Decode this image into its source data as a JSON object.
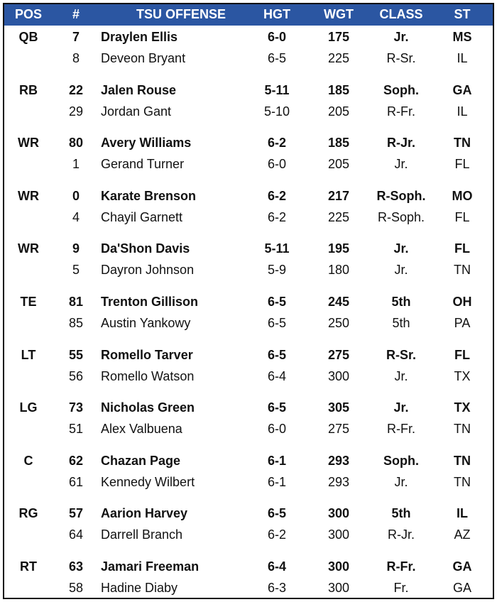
{
  "header": {
    "pos": "POS",
    "num": "#",
    "name": "TSU OFFENSE",
    "hgt": "HGT",
    "wgt": "WGT",
    "class": "CLASS",
    "st": "ST"
  },
  "colors": {
    "header_bg": "#2b56a2",
    "header_text": "#ffffff",
    "border": "#111111"
  },
  "groups": [
    {
      "pos": "QB",
      "players": [
        {
          "num": "7",
          "name": "Draylen Ellis",
          "hgt": "6-0",
          "wgt": "175",
          "class": "Jr.",
          "st": "MS"
        },
        {
          "num": "8",
          "name": "Deveon Bryant",
          "hgt": "6-5",
          "wgt": "225",
          "class": "R-Sr.",
          "st": "IL"
        }
      ]
    },
    {
      "pos": "RB",
      "players": [
        {
          "num": "22",
          "name": "Jalen Rouse",
          "hgt": "5-11",
          "wgt": "185",
          "class": "Soph.",
          "st": "GA"
        },
        {
          "num": "29",
          "name": "Jordan Gant",
          "hgt": "5-10",
          "wgt": "205",
          "class": "R-Fr.",
          "st": "IL"
        }
      ]
    },
    {
      "pos": "WR",
      "players": [
        {
          "num": "80",
          "name": "Avery Williams",
          "hgt": "6-2",
          "wgt": "185",
          "class": "R-Jr.",
          "st": "TN"
        },
        {
          "num": "1",
          "name": "Gerand Turner",
          "hgt": "6-0",
          "wgt": "205",
          "class": "Jr.",
          "st": "FL"
        }
      ]
    },
    {
      "pos": "WR",
      "players": [
        {
          "num": "0",
          "name": "Karate Brenson",
          "hgt": "6-2",
          "wgt": "217",
          "class": "R-Soph.",
          "st": "MO"
        },
        {
          "num": "4",
          "name": "Chayil Garnett",
          "hgt": "6-2",
          "wgt": "225",
          "class": "R-Soph.",
          "st": "FL"
        }
      ]
    },
    {
      "pos": "WR",
      "players": [
        {
          "num": "9",
          "name": "Da'Shon Davis",
          "hgt": "5-11",
          "wgt": "195",
          "class": "Jr.",
          "st": "FL"
        },
        {
          "num": "5",
          "name": "Dayron Johnson",
          "hgt": "5-9",
          "wgt": "180",
          "class": "Jr.",
          "st": "TN"
        }
      ]
    },
    {
      "pos": "TE",
      "players": [
        {
          "num": "81",
          "name": "Trenton Gillison",
          "hgt": "6-5",
          "wgt": "245",
          "class": "5th",
          "st": "OH"
        },
        {
          "num": "85",
          "name": "Austin Yankowy",
          "hgt": "6-5",
          "wgt": "250",
          "class": "5th",
          "st": "PA"
        }
      ]
    },
    {
      "pos": "LT",
      "players": [
        {
          "num": "55",
          "name": "Romello Tarver",
          "hgt": "6-5",
          "wgt": "275",
          "class": "R-Sr.",
          "st": "FL"
        },
        {
          "num": "56",
          "name": "Romello Watson",
          "hgt": "6-4",
          "wgt": "300",
          "class": "Jr.",
          "st": "TX"
        }
      ]
    },
    {
      "pos": "LG",
      "players": [
        {
          "num": "73",
          "name": "Nicholas Green",
          "hgt": "6-5",
          "wgt": "305",
          "class": "Jr.",
          "st": "TX"
        },
        {
          "num": "51",
          "name": "Alex Valbuena",
          "hgt": "6-0",
          "wgt": "275",
          "class": "R-Fr.",
          "st": "TN"
        }
      ]
    },
    {
      "pos": "C",
      "players": [
        {
          "num": "62",
          "name": "Chazan Page",
          "hgt": "6-1",
          "wgt": "293",
          "class": "Soph.",
          "st": "TN"
        },
        {
          "num": "61",
          "name": "Kennedy Wilbert",
          "hgt": "6-1",
          "wgt": "293",
          "class": "Jr.",
          "st": "TN"
        }
      ]
    },
    {
      "pos": "RG",
      "players": [
        {
          "num": "57",
          "name": "Aarion Harvey",
          "hgt": "6-5",
          "wgt": "300",
          "class": "5th",
          "st": "IL"
        },
        {
          "num": "64",
          "name": "Darrell Branch",
          "hgt": "6-2",
          "wgt": "300",
          "class": "R-Jr.",
          "st": "AZ"
        }
      ]
    },
    {
      "pos": "RT",
      "players": [
        {
          "num": "63",
          "name": "Jamari Freeman",
          "hgt": "6-4",
          "wgt": "300",
          "class": "R-Fr.",
          "st": "GA"
        },
        {
          "num": "58",
          "name": "Hadine Diaby",
          "hgt": "6-3",
          "wgt": "300",
          "class": "Fr.",
          "st": "GA"
        }
      ]
    }
  ]
}
